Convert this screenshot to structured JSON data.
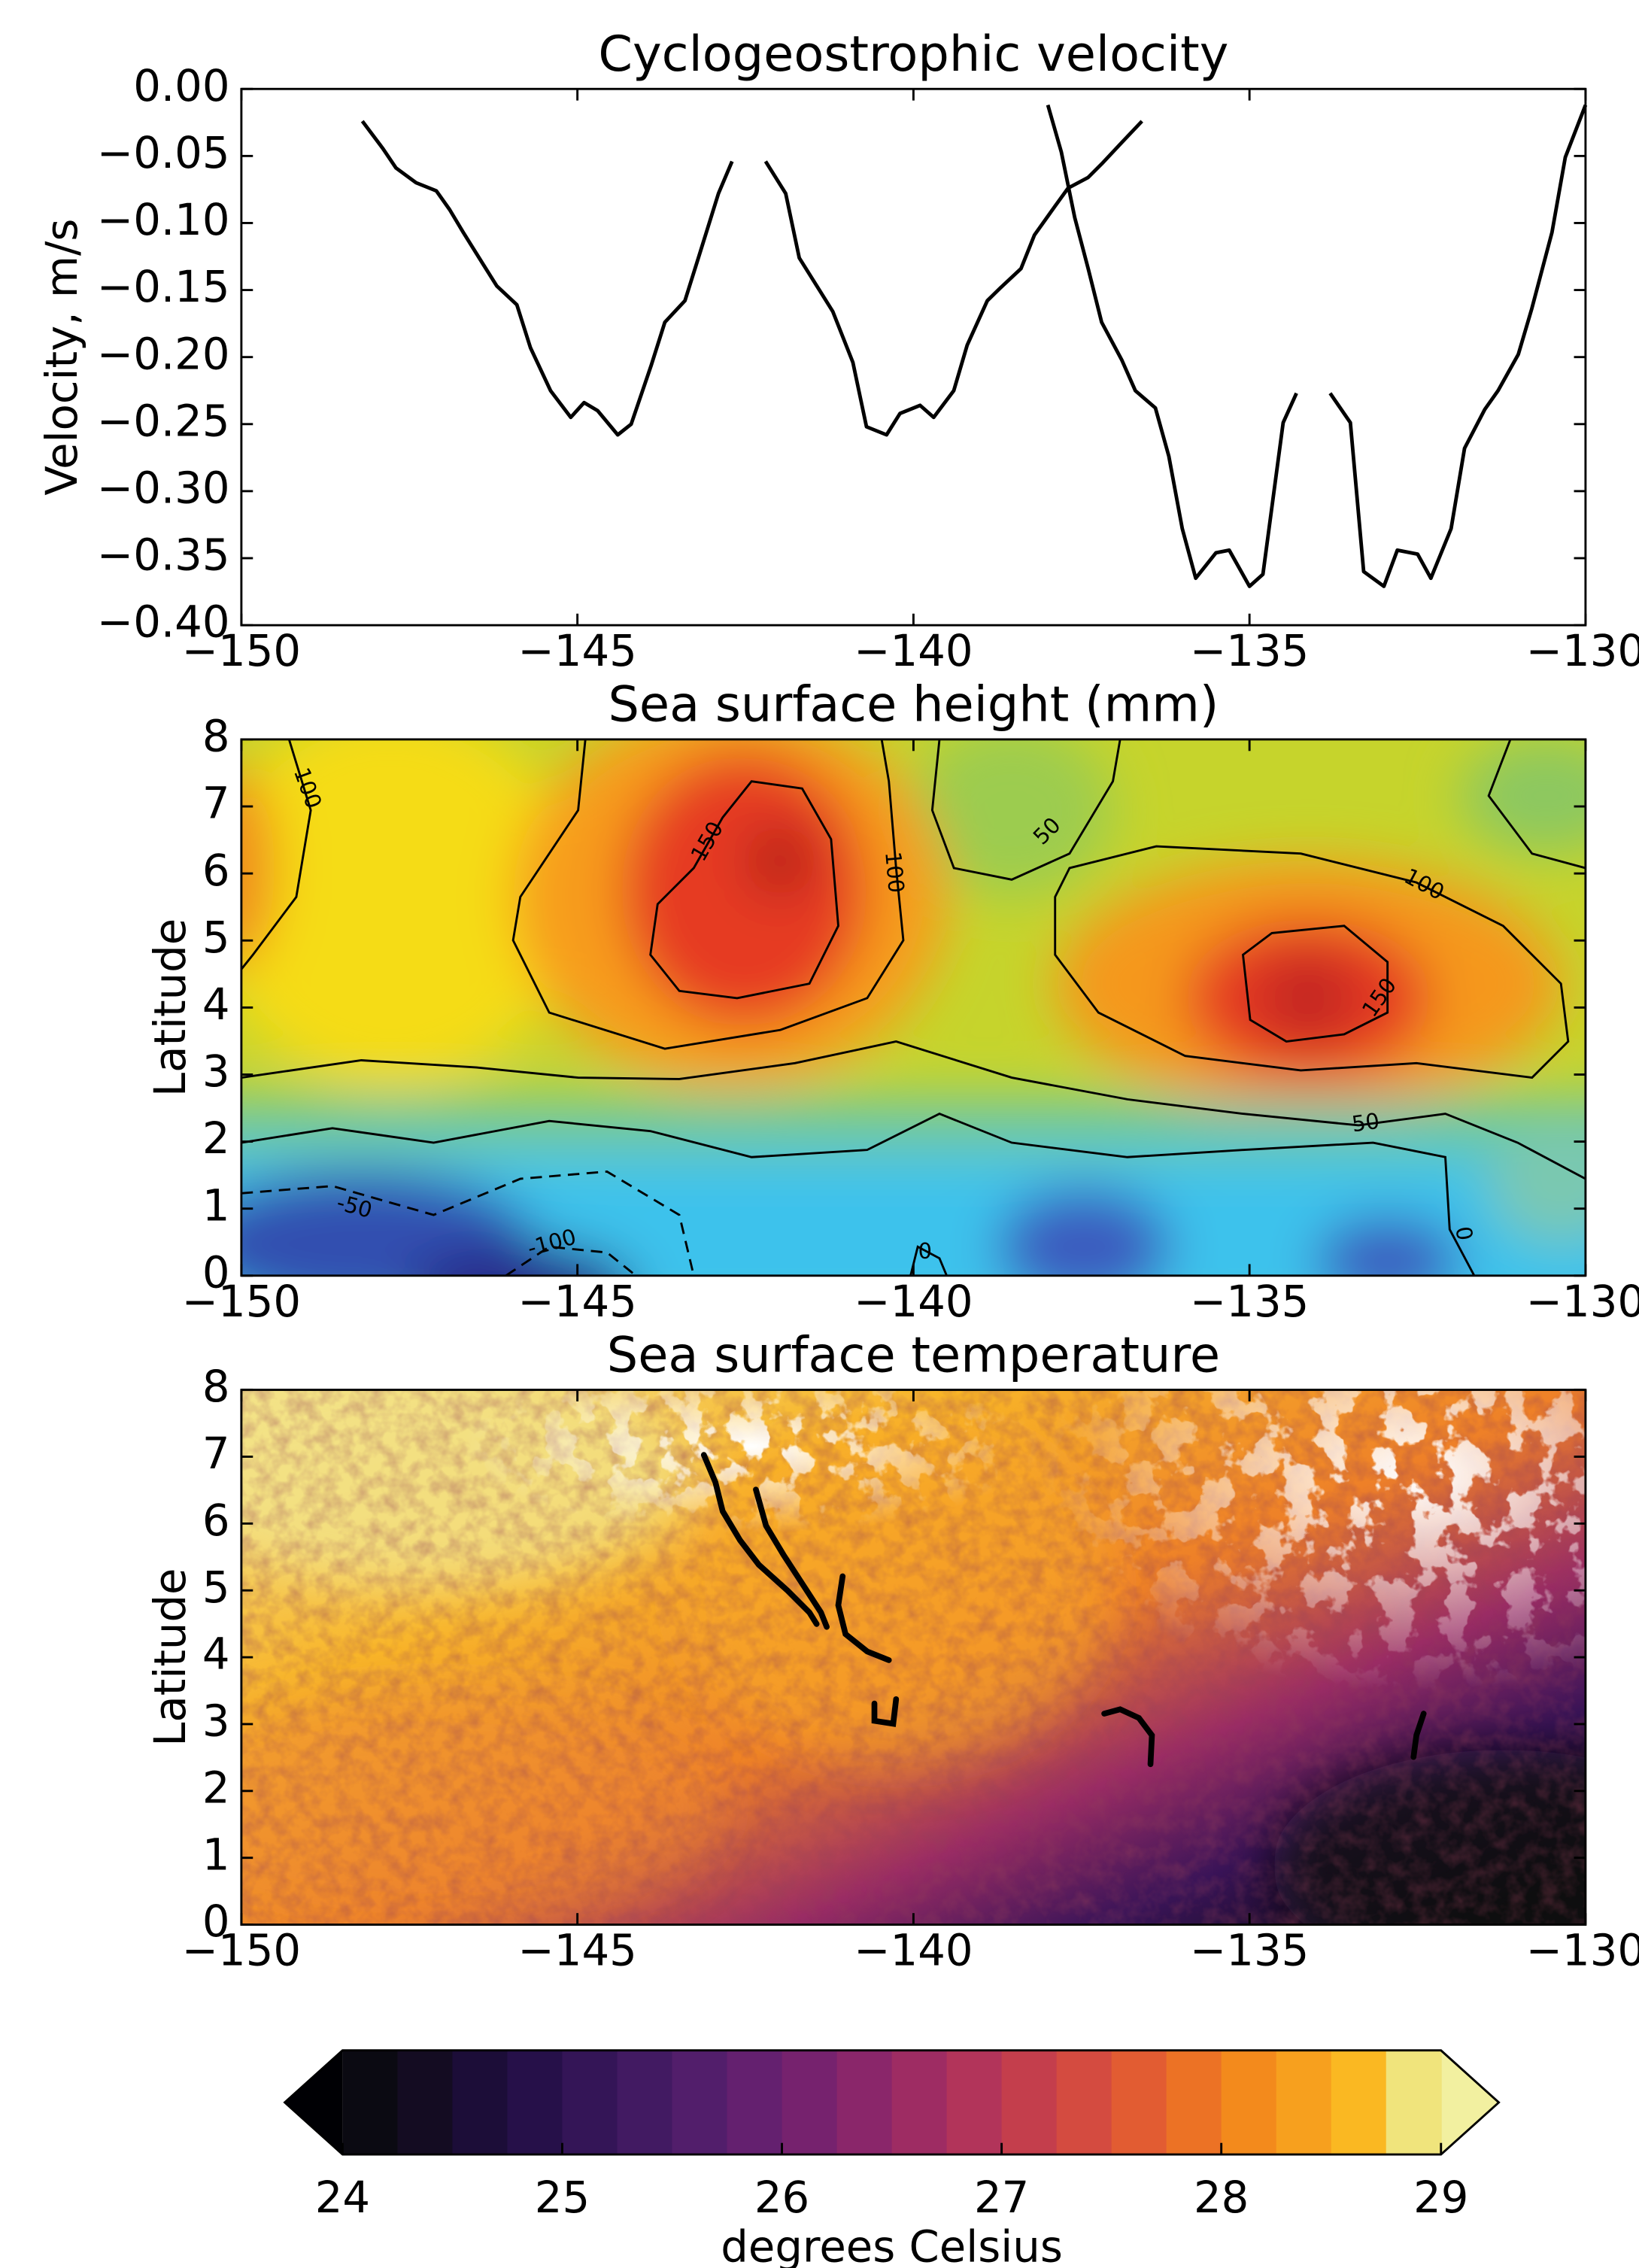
{
  "chart_data": [
    {
      "type": "line",
      "title": "Cyclogeostrophic velocity",
      "ylabel": "Velocity, m/s",
      "color": "#000000",
      "x": [
        -148.2,
        -147.9,
        -147.7,
        -147.4,
        -147.1,
        -146.9,
        -146.7,
        -146.4,
        -146.2,
        -145.9,
        -145.7,
        -145.4,
        -145.1,
        -144.9,
        -144.7,
        -144.4,
        -144.2,
        -143.9,
        -143.7,
        -143.4,
        -143.2,
        -142.9,
        -142.7,
        null,
        -142.2,
        -141.9,
        -141.7,
        -141.4,
        -141.2,
        -140.9,
        -140.7,
        -140.4,
        -140.2,
        -139.9,
        -139.7,
        -139.4,
        -139.2,
        -138.9,
        -138.7,
        -138.4,
        -138.2,
        -137.9,
        -137.7,
        -137.4,
        -137.2,
        -136.9,
        -136.6,
        null,
        -138.0,
        -137.8,
        -137.6,
        -137.4,
        -137.2,
        -136.9,
        -136.7,
        -136.4,
        -136.2,
        -136.0,
        -135.8,
        -135.5,
        -135.3,
        -135.0,
        -134.8,
        -134.5,
        -134.3,
        null,
        -133.8,
        -133.5,
        -133.3,
        -133.0,
        -132.8,
        -132.5,
        -132.3,
        -132.0,
        -131.8,
        -131.5,
        -131.3,
        -131.0,
        -130.8,
        -130.5,
        -130.3,
        -130.0
      ],
      "values": [
        -0.024,
        -0.044,
        -0.059,
        -0.07,
        -0.076,
        -0.09,
        -0.107,
        -0.131,
        -0.147,
        -0.161,
        -0.193,
        -0.225,
        -0.245,
        -0.234,
        -0.24,
        -0.258,
        -0.25,
        -0.206,
        -0.174,
        -0.158,
        -0.126,
        -0.078,
        -0.054,
        null,
        -0.054,
        -0.078,
        -0.126,
        -0.15,
        -0.166,
        -0.204,
        -0.252,
        -0.258,
        -0.242,
        -0.236,
        -0.245,
        -0.225,
        -0.191,
        -0.158,
        -0.148,
        -0.134,
        -0.109,
        -0.088,
        -0.074,
        -0.066,
        -0.056,
        -0.04,
        -0.024,
        null,
        -0.012,
        -0.047,
        -0.096,
        -0.134,
        -0.174,
        -0.202,
        -0.225,
        -0.238,
        -0.274,
        -0.328,
        -0.365,
        -0.346,
        -0.344,
        -0.371,
        -0.362,
        -0.249,
        -0.227,
        null,
        -0.227,
        -0.249,
        -0.36,
        -0.371,
        -0.344,
        -0.347,
        -0.365,
        -0.328,
        -0.268,
        -0.239,
        -0.225,
        -0.198,
        -0.164,
        -0.107,
        -0.051,
        -0.012
      ],
      "xlim": [
        -150,
        -130
      ],
      "xticks": [
        {
          "value": -150,
          "label": "−150"
        },
        {
          "value": -145,
          "label": "−145"
        },
        {
          "value": -140,
          "label": "−140"
        },
        {
          "value": -135,
          "label": "−135"
        },
        {
          "value": -130,
          "label": "−130"
        }
      ],
      "ylim": [
        -0.4,
        0
      ],
      "yticks": [
        {
          "value": 0,
          "label": "0.00"
        },
        {
          "value": -0.05,
          "label": "−0.05"
        },
        {
          "value": -0.1,
          "label": "−0.10"
        },
        {
          "value": -0.15,
          "label": "−0.15"
        },
        {
          "value": -0.2,
          "label": "−0.20"
        },
        {
          "value": -0.25,
          "label": "−0.25"
        },
        {
          "value": -0.3,
          "label": "−0.30"
        },
        {
          "value": -0.35,
          "label": "−0.35"
        },
        {
          "value": -0.4,
          "label": "−0.40"
        }
      ]
    },
    {
      "type": "contourf",
      "title": "Sea surface height (mm)",
      "ylabel": "Latitude",
      "contour_labels": [
        "100",
        "150",
        "100",
        "50",
        "100",
        "150",
        "50",
        "0",
        "-50",
        "-100",
        "0"
      ],
      "xlim": [
        -150,
        -130
      ],
      "xticks": [
        {
          "value": -150,
          "label": "−150"
        },
        {
          "value": -145,
          "label": "−145"
        },
        {
          "value": -140,
          "label": "−140"
        },
        {
          "value": -135,
          "label": "−135"
        },
        {
          "value": -130,
          "label": "−130"
        }
      ],
      "ylim": [
        0,
        8
      ],
      "yticks": [
        0,
        1,
        2,
        3,
        4,
        5,
        6,
        7,
        8
      ]
    },
    {
      "type": "image",
      "title": "Sea surface temperature",
      "ylabel": "Latitude",
      "xlim": [
        -150,
        -130
      ],
      "xticks": [
        {
          "value": -150,
          "label": "−150"
        },
        {
          "value": -145,
          "label": "−145"
        },
        {
          "value": -140,
          "label": "−140"
        },
        {
          "value": -135,
          "label": "−135"
        },
        {
          "value": -130,
          "label": "−130"
        }
      ],
      "ylim": [
        0,
        8
      ],
      "yticks": [
        0,
        1,
        2,
        3,
        4,
        5,
        6,
        7,
        8
      ]
    },
    {
      "type": "colorbar",
      "label": "degrees Celsius",
      "xlim": [
        24,
        29
      ],
      "xticks": [
        24,
        25,
        26,
        27,
        28,
        29
      ],
      "under_color": "#000004",
      "over_color": "#f2f0a0",
      "colors": [
        "#0b0a12",
        "#140c22",
        "#1c0d38",
        "#261049",
        "#341557",
        "#421a62",
        "#521e6b",
        "#64206f",
        "#76226e",
        "#8a266a",
        "#9e2c63",
        "#b2345a",
        "#c43e4c",
        "#d44b40",
        "#e25c32",
        "#ec7225",
        "#f38a1c",
        "#f7a01e",
        "#fab822",
        "#f0e47c"
      ]
    }
  ]
}
